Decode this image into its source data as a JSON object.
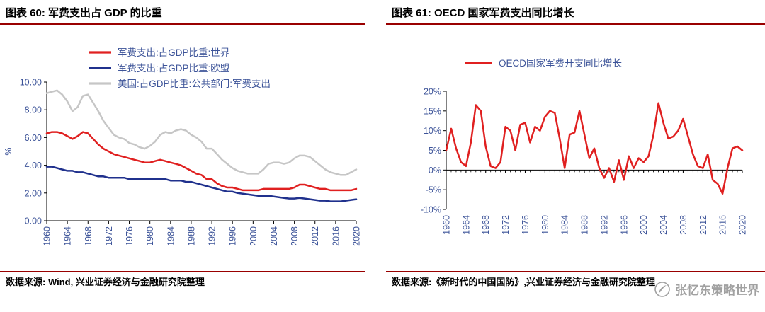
{
  "style": {
    "rule_color": "#990000",
    "label_color": "#3D5499",
    "axis_color": "#000000",
    "watermark_color": "#9A9A9A"
  },
  "sources": [
    "数据来源: Wind, 兴业证券经济与金融研究院整理",
    "数据来源:《新时代的中国国防》,兴业证券经济与金融研究院整理"
  ],
  "watermark": {
    "text": "张忆东策略世界",
    "icon": "quill-seal-icon"
  },
  "chart_data": [
    {
      "type": "line",
      "title": "图表 60: 军费支出占 GDP 的比重",
      "ylabel": "%",
      "ylim": [
        0,
        10
      ],
      "ytick_values": [
        10,
        8,
        6,
        4,
        2,
        0
      ],
      "ytick_labels": [
        "10.00",
        "8.00",
        "6.00",
        "4.00",
        "2.00",
        "0.00"
      ],
      "x_range": [
        1960,
        2020
      ],
      "x_step": 1,
      "xtick_values": [
        1960,
        1964,
        1968,
        1972,
        1976,
        1980,
        1984,
        1988,
        1992,
        1996,
        2000,
        2004,
        2008,
        2012,
        2016,
        2020
      ],
      "xtick_labels": [
        "1960",
        "1964",
        "1968",
        "1972",
        "1976",
        "1980",
        "1984",
        "1988",
        "1992",
        "1996",
        "2000",
        "2004",
        "2008",
        "2012",
        "2016",
        "2020"
      ],
      "grid": false,
      "legend_position": "top-center",
      "series": [
        {
          "name": "军费支出:占GDP比重:世界",
          "color": "#E02020",
          "values": [
            6.3,
            6.4,
            6.4,
            6.3,
            6.1,
            5.9,
            6.1,
            6.4,
            6.3,
            5.9,
            5.5,
            5.2,
            5.0,
            4.8,
            4.7,
            4.6,
            4.5,
            4.4,
            4.3,
            4.2,
            4.2,
            4.3,
            4.4,
            4.3,
            4.2,
            4.1,
            4.0,
            3.8,
            3.6,
            3.4,
            3.3,
            3.0,
            3.0,
            2.7,
            2.5,
            2.4,
            2.4,
            2.3,
            2.2,
            2.2,
            2.2,
            2.2,
            2.3,
            2.3,
            2.3,
            2.3,
            2.3,
            2.3,
            2.4,
            2.6,
            2.6,
            2.5,
            2.4,
            2.3,
            2.3,
            2.2,
            2.2,
            2.2,
            2.2,
            2.2,
            2.3
          ]
        },
        {
          "name": "军费支出:占GDP比重:欧盟",
          "color": "#20318D",
          "values": [
            3.9,
            3.9,
            3.8,
            3.7,
            3.6,
            3.6,
            3.5,
            3.5,
            3.4,
            3.3,
            3.2,
            3.2,
            3.1,
            3.1,
            3.1,
            3.1,
            3.0,
            3.0,
            3.0,
            3.0,
            3.0,
            3.0,
            3.0,
            3.0,
            2.9,
            2.9,
            2.9,
            2.8,
            2.8,
            2.7,
            2.6,
            2.5,
            2.4,
            2.3,
            2.2,
            2.1,
            2.1,
            2.0,
            1.95,
            1.9,
            1.85,
            1.8,
            1.8,
            1.8,
            1.75,
            1.7,
            1.65,
            1.6,
            1.6,
            1.65,
            1.6,
            1.55,
            1.5,
            1.45,
            1.45,
            1.4,
            1.4,
            1.4,
            1.45,
            1.5,
            1.55
          ]
        },
        {
          "name": "美国:占GDP比重:公共部门:军费支出",
          "color": "#C6C6C6",
          "values": [
            9.2,
            9.3,
            9.4,
            9.1,
            8.6,
            7.9,
            8.2,
            9.0,
            9.1,
            8.5,
            7.9,
            7.2,
            6.7,
            6.2,
            6.0,
            5.9,
            5.6,
            5.5,
            5.3,
            5.2,
            5.4,
            5.7,
            6.2,
            6.4,
            6.3,
            6.5,
            6.6,
            6.5,
            6.2,
            6.0,
            5.7,
            5.2,
            5.2,
            4.8,
            4.4,
            4.1,
            3.8,
            3.6,
            3.5,
            3.4,
            3.4,
            3.4,
            3.7,
            4.1,
            4.2,
            4.2,
            4.1,
            4.2,
            4.5,
            4.7,
            4.7,
            4.6,
            4.3,
            4.0,
            3.7,
            3.5,
            3.4,
            3.3,
            3.3,
            3.5,
            3.7
          ]
        }
      ]
    },
    {
      "type": "line",
      "title": "图表 61: OECD 国家军费支出同比增长",
      "ylabel": "",
      "ylim": [
        -10,
        20
      ],
      "ytick_values": [
        20,
        15,
        10,
        5,
        0,
        -5,
        -10
      ],
      "ytick_labels": [
        "20%",
        "15%",
        "10%",
        "5%",
        "0%",
        "-5%",
        "-10%"
      ],
      "x_range": [
        1960,
        2020
      ],
      "x_step": 1,
      "xtick_values": [
        1960,
        1964,
        1968,
        1972,
        1976,
        1980,
        1984,
        1988,
        1992,
        1996,
        2000,
        2004,
        2008,
        2012,
        2016,
        2020
      ],
      "xtick_labels": [
        "1960",
        "1964",
        "1968",
        "1972",
        "1976",
        "1980",
        "1984",
        "1988",
        "1992",
        "1996",
        "2000",
        "2004",
        "2008",
        "2012",
        "2016",
        "2020"
      ],
      "grid": false,
      "legend_position": "top-center",
      "axis_at_zero": true,
      "series": [
        {
          "name": "OECD国家军费开支同比增长",
          "color": "#E02020",
          "values": [
            5.0,
            10.5,
            5.5,
            2.0,
            1.0,
            7.0,
            16.5,
            15.0,
            6.0,
            1.0,
            0.5,
            2.0,
            11.0,
            10.0,
            5.0,
            11.5,
            12.0,
            7.0,
            11.0,
            10.0,
            13.5,
            15.0,
            14.5,
            8.0,
            0.5,
            9.0,
            9.5,
            15.0,
            9.0,
            3.0,
            5.5,
            0.5,
            -2.0,
            0.5,
            -3.0,
            2.5,
            -2.5,
            3.5,
            0.5,
            3.0,
            2.0,
            3.5,
            9.0,
            17.0,
            12.0,
            8.0,
            8.5,
            10.0,
            13.0,
            8.5,
            4.0,
            1.0,
            0.5,
            4.0,
            -2.5,
            -3.5,
            -6.0,
            0.5,
            5.5,
            6.0,
            5.0
          ]
        }
      ]
    }
  ]
}
